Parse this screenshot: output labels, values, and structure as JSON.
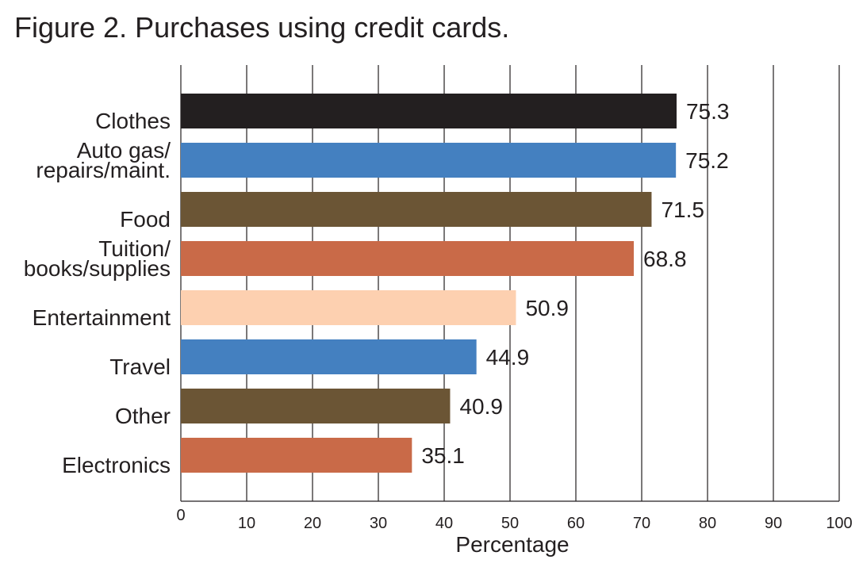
{
  "chart_data": {
    "type": "bar",
    "orientation": "horizontal",
    "title": "Figure 2. Purchases using credit cards.",
    "categories": [
      "Clothes",
      "Auto gas/\nrepairs/maint.",
      "Food",
      "Tuition/\nbooks/supplies",
      "Entertainment",
      "Travel",
      "Other",
      "Electronics"
    ],
    "values": [
      75.3,
      75.2,
      71.5,
      68.8,
      50.9,
      44.9,
      40.9,
      35.1
    ],
    "colors": [
      "#231f20",
      "#4480c0",
      "#6b5535",
      "#c96a48",
      "#fdd0b0",
      "#4480c0",
      "#6b5535",
      "#c96a48"
    ],
    "xlabel": "Percentage",
    "xlim": [
      0,
      100
    ],
    "xticks": [
      0,
      10,
      20,
      30,
      40,
      50,
      60,
      70,
      80,
      90,
      100
    ],
    "grid": true
  }
}
